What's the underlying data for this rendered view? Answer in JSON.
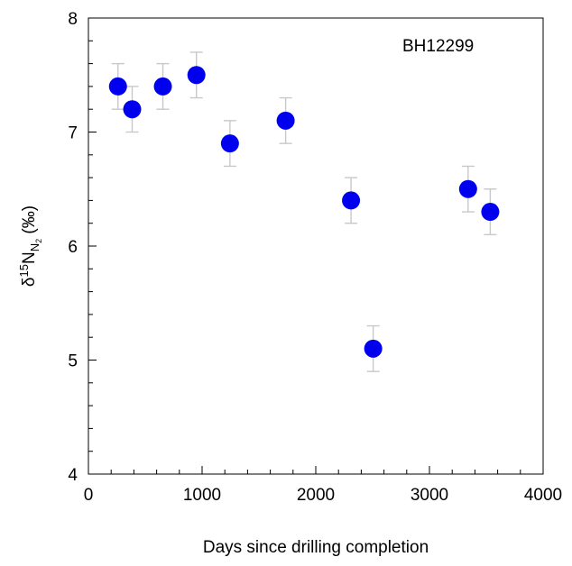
{
  "chart_data": {
    "type": "scatter",
    "annotation": "BH12299",
    "xlabel": "Days since drilling completion",
    "ylabel": {
      "delta": "δ",
      "iso_mass": "15",
      "element": "N",
      "sub_element": "N",
      "sub_count": "2",
      "unit": " (‰)"
    },
    "xlim": [
      0,
      4000
    ],
    "ylim": [
      4,
      8
    ],
    "x_ticks": [
      0,
      1000,
      2000,
      3000,
      4000
    ],
    "y_ticks": [
      4,
      5,
      6,
      7,
      8
    ],
    "x_minor_step": 200,
    "y_minor_step": 0.2,
    "grid": false,
    "marker_color": "#0000ee",
    "errorbar_color": "#c8c8c8",
    "points": [
      {
        "x": 260,
        "y": 7.4,
        "err": 0.2
      },
      {
        "x": 385,
        "y": 7.2,
        "err": 0.2
      },
      {
        "x": 655,
        "y": 7.4,
        "err": 0.2
      },
      {
        "x": 950,
        "y": 7.5,
        "err": 0.2
      },
      {
        "x": 1245,
        "y": 6.9,
        "err": 0.2
      },
      {
        "x": 1735,
        "y": 7.1,
        "err": 0.2
      },
      {
        "x": 2310,
        "y": 6.4,
        "err": 0.2
      },
      {
        "x": 2505,
        "y": 5.1,
        "err": 0.2
      },
      {
        "x": 3340,
        "y": 6.5,
        "err": 0.2
      },
      {
        "x": 3535,
        "y": 6.3,
        "err": 0.2
      }
    ]
  }
}
